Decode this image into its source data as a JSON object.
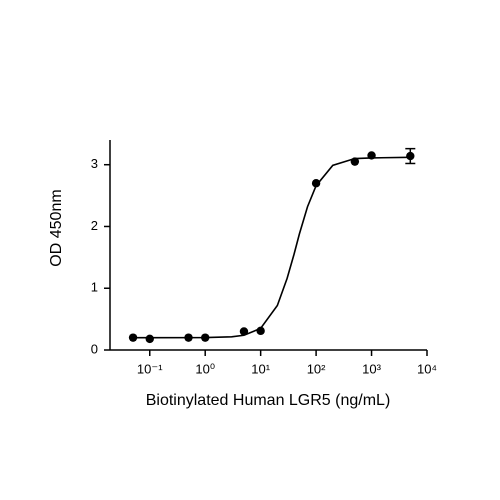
{
  "chart_data": {
    "type": "scatter",
    "x_label": "Biotinylated Human LGR5 (ng/mL)",
    "y_label": "OD 450nm",
    "xscale": "log",
    "x": [
      0.05,
      0.1,
      0.5,
      1,
      5,
      10,
      100,
      500,
      1000,
      5000
    ],
    "values": [
      0.2,
      0.18,
      0.2,
      0.2,
      0.3,
      0.31,
      2.7,
      3.05,
      3.15,
      3.14
    ],
    "errors": [
      null,
      null,
      null,
      null,
      null,
      null,
      null,
      null,
      null,
      0.12
    ],
    "color": "#000000",
    "curve": {
      "x": [
        0.05,
        0.1,
        1,
        3,
        5,
        10,
        20,
        30,
        40,
        50,
        70,
        100,
        200,
        500,
        1000,
        5000
      ],
      "values": [
        0.2,
        0.2,
        0.202,
        0.214,
        0.239,
        0.35,
        0.72,
        1.16,
        1.55,
        1.88,
        2.32,
        2.66,
        2.99,
        3.1,
        3.11,
        3.12
      ]
    },
    "xlim": [
      0.02,
      10000
    ],
    "xticks": [
      {
        "value": 0.1,
        "label": "10⁻¹"
      },
      {
        "value": 1,
        "label": "10⁰"
      },
      {
        "value": 10,
        "label": "10¹"
      },
      {
        "value": 100,
        "label": "10²"
      },
      {
        "value": 1000,
        "label": "10³"
      },
      {
        "value": 10000,
        "label": "10⁴"
      }
    ],
    "ylim": [
      0,
      3.4
    ],
    "yticks": [
      0,
      1,
      2,
      3
    ]
  }
}
